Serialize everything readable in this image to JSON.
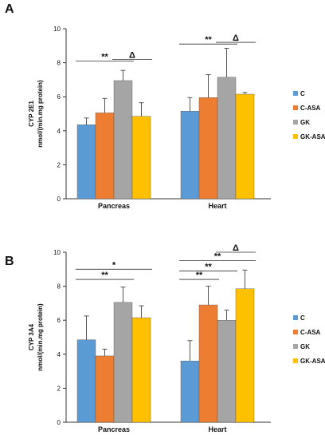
{
  "chart_data": [
    {
      "panel": "A",
      "type": "bar",
      "categories": [
        "Pancreas",
        "Heart"
      ],
      "ylabel_lines": [
        "CYP 2E1",
        "nmol/(min.mg protein)"
      ],
      "ylim": [
        0,
        10
      ],
      "yticks": [
        0,
        2,
        4,
        6,
        8,
        10
      ],
      "legend_position": "right",
      "series": [
        {
          "name": "C",
          "color": "#5b9bd5",
          "values": [
            4.35,
            5.15
          ],
          "errors": [
            0.4,
            0.8
          ]
        },
        {
          "name": "C-ASA",
          "color": "#ed7d31",
          "values": [
            5.05,
            5.95
          ],
          "errors": [
            0.85,
            1.35
          ]
        },
        {
          "name": "GK",
          "color": "#a5a5a5",
          "values": [
            6.95,
            7.15
          ],
          "errors": [
            0.6,
            1.7
          ]
        },
        {
          "name": "GK-ASA",
          "color": "#ffc000",
          "values": [
            4.85,
            6.15
          ],
          "errors": [
            0.8,
            0.1
          ]
        }
      ],
      "annotations": [
        {
          "label": "**",
          "category": 0,
          "from_series": 0,
          "to_series": 2,
          "y": 8.1
        },
        {
          "label": "Δ",
          "category": 0,
          "from_series": 2,
          "to_series": 3,
          "y": 8.2
        },
        {
          "label": "**",
          "category": 1,
          "from_series": 0,
          "to_series": 2,
          "y": 9.1
        },
        {
          "label": "Δ",
          "category": 1,
          "from_series": 2,
          "to_series": 3,
          "y": 9.2
        }
      ]
    },
    {
      "panel": "B",
      "type": "bar",
      "categories": [
        "Pancreas",
        "Heart"
      ],
      "ylabel_lines": [
        "CYP 3A4",
        "nmol/(min.mg protein)"
      ],
      "ylim": [
        0,
        10
      ],
      "yticks": [
        0,
        2,
        4,
        6,
        8,
        10
      ],
      "legend_position": "right",
      "series": [
        {
          "name": "C",
          "color": "#5b9bd5",
          "values": [
            4.85,
            3.6
          ],
          "errors": [
            1.4,
            1.2
          ]
        },
        {
          "name": "C-ASA",
          "color": "#ed7d31",
          "values": [
            3.9,
            6.9
          ],
          "errors": [
            0.4,
            1.1
          ]
        },
        {
          "name": "GK",
          "color": "#a5a5a5",
          "values": [
            7.05,
            6.0
          ],
          "errors": [
            0.9,
            0.6
          ]
        },
        {
          "name": "GK-ASA",
          "color": "#ffc000",
          "values": [
            6.15,
            7.85
          ],
          "errors": [
            0.7,
            1.1
          ]
        }
      ],
      "annotations": [
        {
          "label": "**",
          "category": 0,
          "from_series": 0,
          "to_series": 2,
          "y": 8.4
        },
        {
          "label": "*",
          "category": 0,
          "from_series": 0,
          "to_series": 3,
          "y": 9.0
        },
        {
          "label": "**",
          "category": 1,
          "from_series": 0,
          "to_series": 1,
          "y": 8.4
        },
        {
          "label": "**",
          "category": 1,
          "from_series": 0,
          "to_series": 2,
          "y": 8.9
        },
        {
          "label": "**",
          "category": 1,
          "from_series": 0,
          "to_series": 3,
          "y": 9.5
        },
        {
          "label": "Δ",
          "category": 1,
          "from_series": 2,
          "to_series": 3,
          "y": 10.0
        }
      ]
    }
  ]
}
